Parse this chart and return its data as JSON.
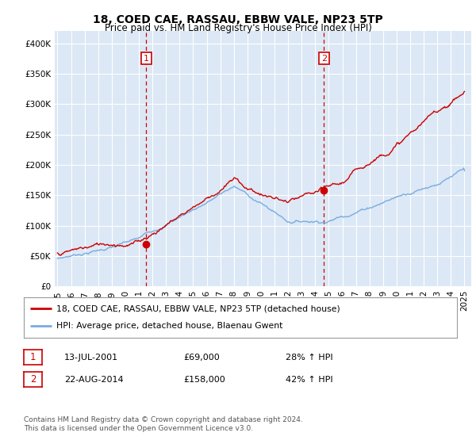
{
  "title": "18, COED CAE, RASSAU, EBBW VALE, NP23 5TP",
  "subtitle": "Price paid vs. HM Land Registry's House Price Index (HPI)",
  "legend_line1": "18, COED CAE, RASSAU, EBBW VALE, NP23 5TP (detached house)",
  "legend_line2": "HPI: Average price, detached house, Blaenau Gwent",
  "annotation1_date": "13-JUL-2001",
  "annotation1_price": "£69,000",
  "annotation1_hpi": "28% ↑ HPI",
  "annotation2_date": "22-AUG-2014",
  "annotation2_price": "£158,000",
  "annotation2_hpi": "42% ↑ HPI",
  "footer": "Contains HM Land Registry data © Crown copyright and database right 2024.\nThis data is licensed under the Open Government Licence v3.0.",
  "red_color": "#cc0000",
  "blue_color": "#7aace0",
  "vline_color": "#cc0000",
  "plot_bg_color": "#dce8f5",
  "ylim": [
    0,
    420000
  ],
  "yticks": [
    0,
    50000,
    100000,
    150000,
    200000,
    250000,
    300000,
    350000,
    400000
  ],
  "sale1_x": 2001.54,
  "sale1_y": 69000,
  "sale2_x": 2014.64,
  "sale2_y": 158000,
  "xlim_left": 1994.8,
  "xlim_right": 2025.5
}
